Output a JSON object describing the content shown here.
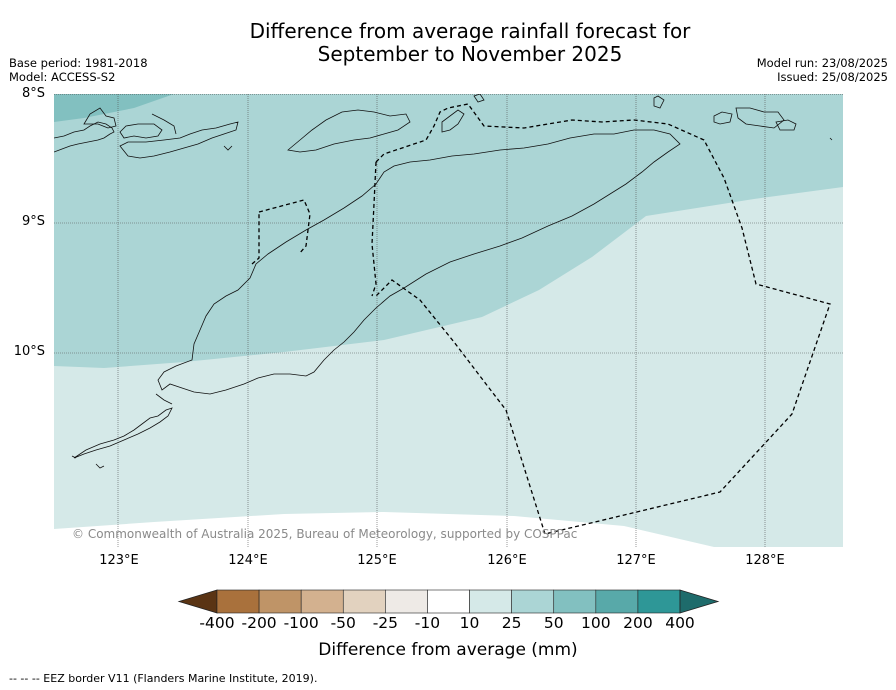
{
  "title": "Difference from average rainfall forecast for September to November 2025",
  "title_line1": "Difference from average rainfall forecast for",
  "title_line2": "September to November 2025",
  "base_period": "Base period: 1981-2018",
  "model": "Model: ACCESS-S2",
  "model_run": "Model run: 23/08/2025",
  "issued": "Issued: 25/08/2025",
  "latitude_labels": [
    "8°S",
    "9°S",
    "10°S"
  ],
  "longitude_labels": [
    "123°E",
    "124°E",
    "125°E",
    "126°E",
    "127°E",
    "128°E"
  ],
  "copyright": "© Commonwealth of Australia 2025, Bureau of Meteorology, supported by COSPPac",
  "colorbar": {
    "title": "Difference from average (mm)",
    "ticks": [
      "-400",
      "-200",
      "-100",
      "-50",
      "-25",
      "-10",
      "10",
      "25",
      "50",
      "100",
      "200",
      "400"
    ],
    "colors": [
      "#5a3414",
      "#a9713c",
      "#bf9467",
      "#d3b18f",
      "#e2d2bf",
      "#eeeae6",
      "#ffffff",
      "#d5e9e8",
      "#abd5d5",
      "#82c0c0",
      "#58a9a9",
      "#2e9797",
      "#1e6b6b"
    ]
  },
  "region_colors": {
    "class_10_25": "#d5e9e8",
    "class_25_50": "#abd5d5",
    "class_50_100": "#82c0c0"
  },
  "footer": "-- -- -- EEZ border V11 (Flanders Marine Institute, 2019)."
}
